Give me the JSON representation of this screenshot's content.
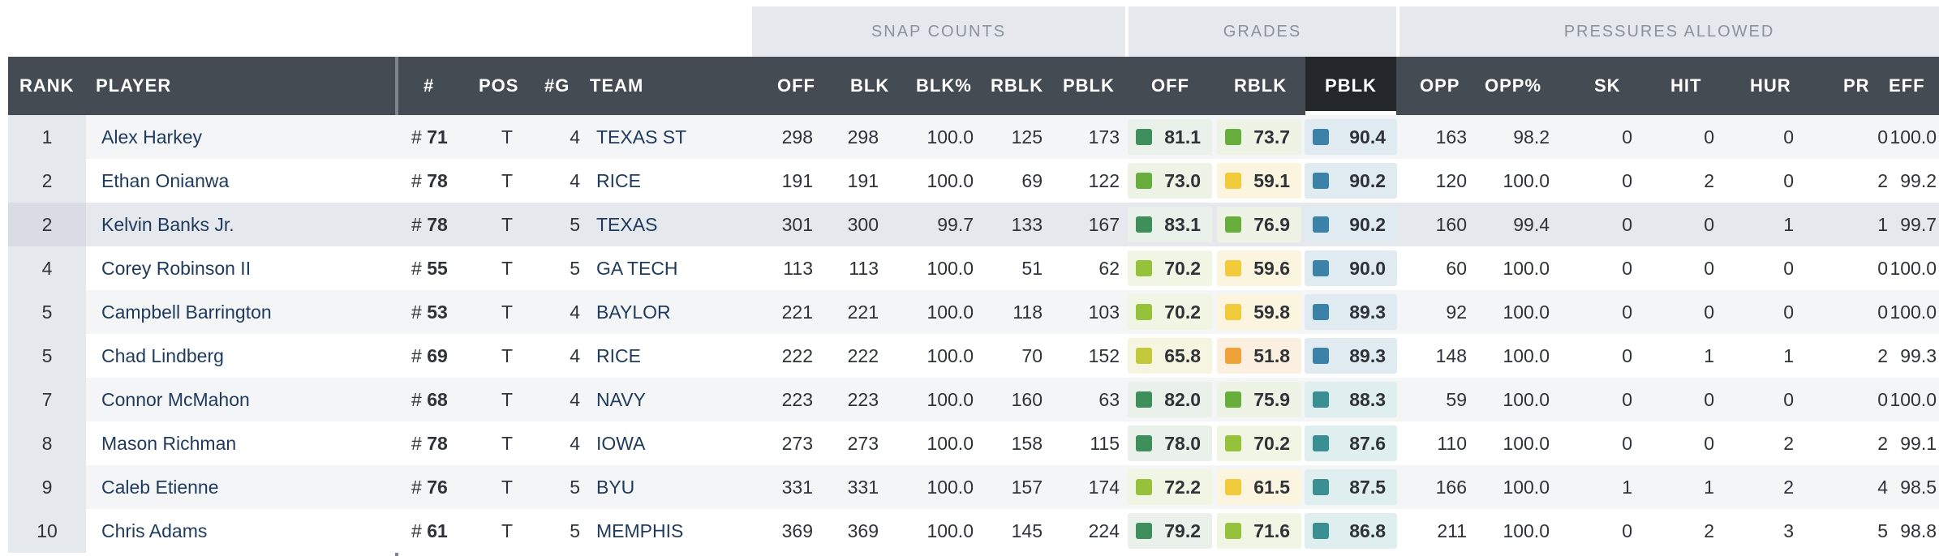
{
  "group_headers": [
    "SNAP COUNTS",
    "GRADES",
    "PRESSURES ALLOWED"
  ],
  "columns": {
    "rank": "RANK",
    "player": "PLAYER",
    "number": "#",
    "pos": "POS",
    "games": "#G",
    "team": "TEAM",
    "snap_off": "OFF",
    "blk": "BLK",
    "blk_pct": "BLK%",
    "rblk": "RBLK",
    "pblk": "PBLK",
    "grade_off": "OFF",
    "grade_rblk": "RBLK",
    "grade_pblk": "PBLK",
    "opp": "OPP",
    "opp_pct": "OPP%",
    "sk": "SK",
    "hit": "HIT",
    "hur": "HUR",
    "pr": "PR",
    "eff": "EFF"
  },
  "colors": {
    "grade_dark_green": "#3f8f5c",
    "grade_green": "#68ae3c",
    "grade_light_green": "#96c13b",
    "grade_yellow_green": "#c3c93a",
    "grade_yellow": "#f2cb3a",
    "grade_orange": "#f0a33a",
    "grade_blue": "#3b82a8",
    "grade_teal": "#3a8f92",
    "header_bg": "#454b52",
    "link_text": "#1e3a5c"
  },
  "rows": [
    {
      "rank": "1",
      "player": "Alex Harkey",
      "num_prefix": "#",
      "num": "71",
      "pos": "T",
      "games": "4",
      "team": "TEXAS ST",
      "snap_off": "298",
      "blk": "298",
      "blk_pct": "100.0",
      "rblk": "125",
      "pblk": "173",
      "g_off": "81.1",
      "g_rblk": "73.7",
      "g_pblk": "90.4",
      "opp": "163",
      "opp_pct": "98.2",
      "sk": "0",
      "hit": "0",
      "hur": "0",
      "pr": "0",
      "eff": "100.0",
      "c_off": "#3f8f5c",
      "c_rblk": "#68ae3c",
      "c_pblk": "#3b82a8"
    },
    {
      "rank": "2",
      "player": "Ethan Onianwa",
      "num_prefix": "#",
      "num": "78",
      "pos": "T",
      "games": "4",
      "team": "RICE",
      "snap_off": "191",
      "blk": "191",
      "blk_pct": "100.0",
      "rblk": "69",
      "pblk": "122",
      "g_off": "73.0",
      "g_rblk": "59.1",
      "g_pblk": "90.2",
      "opp": "120",
      "opp_pct": "100.0",
      "sk": "0",
      "hit": "2",
      "hur": "0",
      "pr": "2",
      "eff": "99.2",
      "c_off": "#68ae3c",
      "c_rblk": "#f2cb3a",
      "c_pblk": "#3b82a8"
    },
    {
      "rank": "2",
      "player": "Kelvin Banks Jr.",
      "num_prefix": "#",
      "num": "78",
      "pos": "T",
      "games": "5",
      "team": "TEXAS",
      "snap_off": "301",
      "blk": "300",
      "blk_pct": "99.7",
      "rblk": "133",
      "pblk": "167",
      "g_off": "83.1",
      "g_rblk": "76.9",
      "g_pblk": "90.2",
      "opp": "160",
      "opp_pct": "99.4",
      "sk": "0",
      "hit": "0",
      "hur": "1",
      "pr": "1",
      "eff": "99.7",
      "c_off": "#3f8f5c",
      "c_rblk": "#68ae3c",
      "c_pblk": "#3b82a8"
    },
    {
      "rank": "4",
      "player": "Corey Robinson II",
      "num_prefix": "#",
      "num": "55",
      "pos": "T",
      "games": "5",
      "team": "GA TECH",
      "snap_off": "113",
      "blk": "113",
      "blk_pct": "100.0",
      "rblk": "51",
      "pblk": "62",
      "g_off": "70.2",
      "g_rblk": "59.6",
      "g_pblk": "90.0",
      "opp": "60",
      "opp_pct": "100.0",
      "sk": "0",
      "hit": "0",
      "hur": "0",
      "pr": "0",
      "eff": "100.0",
      "c_off": "#96c13b",
      "c_rblk": "#f2cb3a",
      "c_pblk": "#3b82a8"
    },
    {
      "rank": "5",
      "player": "Campbell Barrington",
      "num_prefix": "#",
      "num": "53",
      "pos": "T",
      "games": "4",
      "team": "BAYLOR",
      "snap_off": "221",
      "blk": "221",
      "blk_pct": "100.0",
      "rblk": "118",
      "pblk": "103",
      "g_off": "70.2",
      "g_rblk": "59.8",
      "g_pblk": "89.3",
      "opp": "92",
      "opp_pct": "100.0",
      "sk": "0",
      "hit": "0",
      "hur": "0",
      "pr": "0",
      "eff": "100.0",
      "c_off": "#96c13b",
      "c_rblk": "#f2cb3a",
      "c_pblk": "#3b82a8"
    },
    {
      "rank": "5",
      "player": "Chad Lindberg",
      "num_prefix": "#",
      "num": "69",
      "pos": "T",
      "games": "4",
      "team": "RICE",
      "snap_off": "222",
      "blk": "222",
      "blk_pct": "100.0",
      "rblk": "70",
      "pblk": "152",
      "g_off": "65.8",
      "g_rblk": "51.8",
      "g_pblk": "89.3",
      "opp": "148",
      "opp_pct": "100.0",
      "sk": "0",
      "hit": "1",
      "hur": "1",
      "pr": "2",
      "eff": "99.3",
      "c_off": "#c3c93a",
      "c_rblk": "#f0a33a",
      "c_pblk": "#3b82a8"
    },
    {
      "rank": "7",
      "player": "Connor McMahon",
      "num_prefix": "#",
      "num": "68",
      "pos": "T",
      "games": "4",
      "team": "NAVY",
      "snap_off": "223",
      "blk": "223",
      "blk_pct": "100.0",
      "rblk": "160",
      "pblk": "63",
      "g_off": "82.0",
      "g_rblk": "75.9",
      "g_pblk": "88.3",
      "opp": "59",
      "opp_pct": "100.0",
      "sk": "0",
      "hit": "0",
      "hur": "0",
      "pr": "0",
      "eff": "100.0",
      "c_off": "#3f8f5c",
      "c_rblk": "#68ae3c",
      "c_pblk": "#3a8f92"
    },
    {
      "rank": "8",
      "player": "Mason Richman",
      "num_prefix": "#",
      "num": "78",
      "pos": "T",
      "games": "4",
      "team": "IOWA",
      "snap_off": "273",
      "blk": "273",
      "blk_pct": "100.0",
      "rblk": "158",
      "pblk": "115",
      "g_off": "78.0",
      "g_rblk": "70.2",
      "g_pblk": "87.6",
      "opp": "110",
      "opp_pct": "100.0",
      "sk": "0",
      "hit": "0",
      "hur": "2",
      "pr": "2",
      "eff": "99.1",
      "c_off": "#3f8f5c",
      "c_rblk": "#96c13b",
      "c_pblk": "#3a8f92"
    },
    {
      "rank": "9",
      "player": "Caleb Etienne",
      "num_prefix": "#",
      "num": "76",
      "pos": "T",
      "games": "5",
      "team": "BYU",
      "snap_off": "331",
      "blk": "331",
      "blk_pct": "100.0",
      "rblk": "157",
      "pblk": "174",
      "g_off": "72.2",
      "g_rblk": "61.5",
      "g_pblk": "87.5",
      "opp": "166",
      "opp_pct": "100.0",
      "sk": "1",
      "hit": "1",
      "hur": "2",
      "pr": "4",
      "eff": "98.5",
      "c_off": "#96c13b",
      "c_rblk": "#f2cb3a",
      "c_pblk": "#3a8f92"
    },
    {
      "rank": "10",
      "player": "Chris Adams",
      "num_prefix": "#",
      "num": "61",
      "pos": "T",
      "games": "5",
      "team": "MEMPHIS",
      "snap_off": "369",
      "blk": "369",
      "blk_pct": "100.0",
      "rblk": "145",
      "pblk": "224",
      "g_off": "79.2",
      "g_rblk": "71.6",
      "g_pblk": "86.8",
      "opp": "211",
      "opp_pct": "100.0",
      "sk": "0",
      "hit": "2",
      "hur": "3",
      "pr": "5",
      "eff": "98.8",
      "c_off": "#3f8f5c",
      "c_rblk": "#96c13b",
      "c_pblk": "#3a8f92"
    }
  ]
}
